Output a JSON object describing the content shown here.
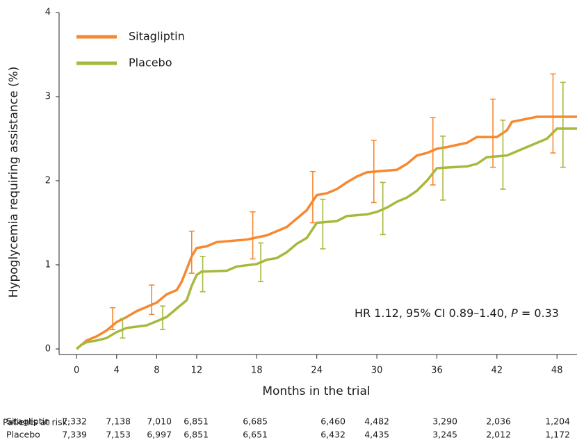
{
  "chart_data": {
    "type": "line",
    "xlabel": "Months in the trial",
    "ylabel": "Hypoglycemia requiring assistance (%)",
    "xlim": [
      -1.75,
      50
    ],
    "ylim": [
      0,
      4
    ],
    "xticks": [
      0,
      4,
      8,
      12,
      18,
      24,
      30,
      36,
      42,
      48
    ],
    "yticks": [
      0,
      1,
      2,
      3,
      4
    ],
    "legend": "upper left",
    "annotation": [
      "HR 1.12, 95% CI 0.89–1.40, ",
      "P",
      " = 0.33"
    ],
    "series": [
      {
        "name": "Sitagliptin",
        "color": "#f7882f",
        "x": [
          0,
          0.5,
          1,
          2,
          3,
          4,
          5,
          6,
          7,
          8,
          9,
          10,
          10.5,
          11,
          11.5,
          12,
          13,
          14,
          17,
          19,
          20,
          21,
          22,
          23,
          24,
          25,
          26,
          27,
          28,
          29,
          32,
          33,
          34,
          35,
          36,
          37,
          39,
          40,
          42,
          43,
          43.5,
          46,
          50
        ],
        "values": [
          0,
          0.05,
          0.1,
          0.15,
          0.22,
          0.32,
          0.38,
          0.45,
          0.5,
          0.55,
          0.65,
          0.7,
          0.8,
          0.95,
          1.1,
          1.2,
          1.22,
          1.27,
          1.3,
          1.35,
          1.4,
          1.45,
          1.55,
          1.65,
          1.83,
          1.85,
          1.9,
          1.98,
          2.05,
          2.1,
          2.13,
          2.2,
          2.3,
          2.33,
          2.38,
          2.4,
          2.45,
          2.52,
          2.52,
          2.6,
          2.7,
          2.76,
          2.76
        ],
        "error_bars": {
          "x": [
            3.6,
            7.5,
            11.5,
            17.6,
            23.6,
            29.7,
            35.6,
            41.6,
            47.6
          ],
          "low": [
            0.23,
            0.41,
            0.9,
            1.07,
            1.5,
            1.74,
            1.95,
            2.16,
            2.33
          ],
          "high": [
            0.49,
            0.76,
            1.4,
            1.63,
            2.11,
            2.48,
            2.75,
            2.97,
            3.27
          ]
        }
      },
      {
        "name": "Placebo",
        "color": "#a8b83c",
        "x": [
          0,
          0.5,
          1,
          2,
          3,
          4,
          5,
          7,
          8,
          9,
          10,
          11,
          11.5,
          12,
          12.5,
          15,
          16,
          18,
          19,
          20,
          21,
          22,
          23,
          24,
          26,
          27,
          29,
          30,
          31,
          32,
          33,
          34,
          35,
          36,
          39,
          40,
          41,
          43,
          44,
          46,
          47,
          48,
          50
        ],
        "values": [
          0,
          0.05,
          0.08,
          0.1,
          0.13,
          0.2,
          0.25,
          0.28,
          0.33,
          0.38,
          0.48,
          0.58,
          0.75,
          0.88,
          0.92,
          0.93,
          0.98,
          1.01,
          1.06,
          1.08,
          1.15,
          1.25,
          1.32,
          1.5,
          1.52,
          1.58,
          1.6,
          1.63,
          1.68,
          1.75,
          1.8,
          1.88,
          2.0,
          2.15,
          2.17,
          2.2,
          2.28,
          2.3,
          2.35,
          2.45,
          2.5,
          2.62,
          2.62
        ],
        "error_bars": {
          "x": [
            4.6,
            8.6,
            12.6,
            18.4,
            24.6,
            30.6,
            36.6,
            42.6,
            48.6
          ],
          "low": [
            0.13,
            0.23,
            0.68,
            0.8,
            1.19,
            1.36,
            1.77,
            1.9,
            2.16
          ],
          "high": [
            0.36,
            0.51,
            1.1,
            1.26,
            1.78,
            1.98,
            2.53,
            2.72,
            3.17
          ]
        }
      }
    ],
    "risk_table": {
      "label": "Patients at risk:",
      "rows": [
        {
          "name": "Sitagliptin",
          "values": [
            "7,332",
            "7,138",
            "7,010",
            "6,851",
            "6,685",
            "6,460",
            "4,482",
            "3,290",
            "2,036",
            "1,204"
          ]
        },
        {
          "name": "Placebo",
          "values": [
            "7,339",
            "7,153",
            "6,997",
            "6,851",
            "6,651",
            "6,432",
            "4,435",
            "3,245",
            "2,012",
            "1,172"
          ]
        }
      ]
    }
  }
}
